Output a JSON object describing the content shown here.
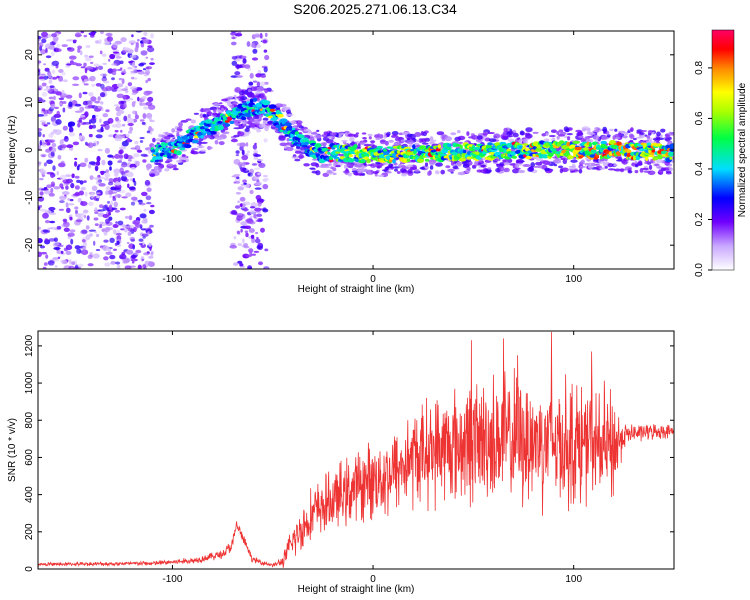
{
  "title": "S206.2025.271.06.13.C34",
  "chart_data": [
    {
      "type": "heatmap",
      "name": "spectrogram",
      "xlabel": "Height of straight line (km)",
      "ylabel": "Frequency (Hz)",
      "xlim": [
        -167,
        150
      ],
      "ylim": [
        -25,
        25
      ],
      "xticks": [
        -100,
        0,
        100
      ],
      "yticks": [
        -20,
        -10,
        0,
        10,
        20
      ],
      "colorbar": {
        "label": "Normalized spectral amplitude",
        "range": [
          0,
          0.95
        ],
        "ticks": [
          0,
          0.2,
          0.4,
          0.6,
          0.8
        ],
        "tick_labels": [
          "0.0",
          "0.2",
          "0.4",
          "0.6",
          "0.8"
        ]
      },
      "ridge": {
        "x": [
          -110,
          -100,
          -90,
          -80,
          -70,
          -60,
          -55,
          -50,
          -45,
          -40,
          -35,
          -30,
          -25,
          -20,
          0,
          40,
          80,
          120,
          150
        ],
        "y": [
          -1,
          0,
          3,
          5,
          7,
          9,
          9.5,
          8,
          5,
          3,
          1.5,
          0,
          -1,
          -0.5,
          -1,
          -0.5,
          0,
          0,
          -0.5
        ]
      },
      "noise_regions": [
        {
          "x": [
            -167,
            -110
          ],
          "y": [
            -25,
            25
          ],
          "level": "scattered"
        },
        {
          "x": [
            -70,
            -53
          ],
          "y": [
            -25,
            25
          ],
          "level": "scattered"
        }
      ]
    },
    {
      "type": "line",
      "name": "snr",
      "xlabel": "Height of straight line (km)",
      "ylabel": "SNR (10 * v/v)",
      "xlim": [
        -167,
        150
      ],
      "ylim": [
        0,
        1280
      ],
      "xticks": [
        -100,
        0,
        100
      ],
      "yticks": [
        0,
        200,
        400,
        600,
        800,
        1000,
        1200
      ],
      "color": "#ee3333",
      "envelope": {
        "x": [
          -167,
          -110,
          -90,
          -75,
          -70,
          -68,
          -60,
          -50,
          -45,
          -40,
          -30,
          -20,
          -10,
          0,
          10,
          20,
          30,
          40,
          50,
          60,
          70,
          80,
          90,
          100,
          110,
          120,
          125,
          130,
          140,
          150
        ],
        "y": [
          25,
          30,
          45,
          80,
          130,
          240,
          50,
          20,
          40,
          150,
          300,
          370,
          430,
          480,
          520,
          600,
          640,
          660,
          680,
          700,
          700,
          690,
          690,
          680,
          660,
          650,
          720,
          730,
          740,
          740
        ],
        "noise": [
          10,
          15,
          20,
          30,
          50,
          40,
          20,
          10,
          40,
          120,
          180,
          200,
          230,
          250,
          280,
          320,
          350,
          380,
          400,
          420,
          430,
          430,
          420,
          420,
          400,
          380,
          80,
          60,
          50,
          40
        ],
        "peaks": [
          {
            "x": 49,
            "y": 1230
          },
          {
            "x": 65,
            "y": 1240
          },
          {
            "x": 89,
            "y": 1275
          },
          {
            "x": 72,
            "y": 1150
          },
          {
            "x": 109,
            "y": 1170
          }
        ]
      }
    }
  ]
}
